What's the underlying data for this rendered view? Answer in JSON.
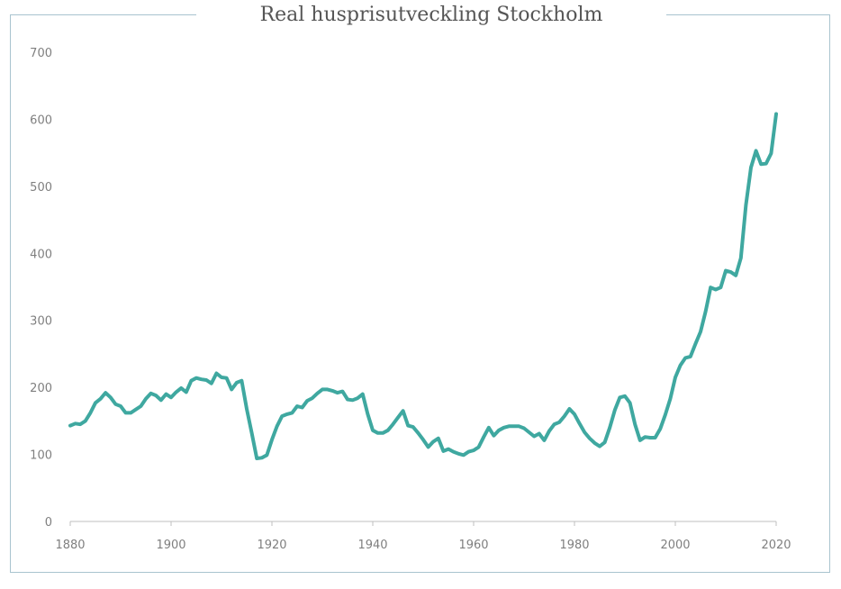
{
  "chart_data": {
    "type": "line",
    "title": "Real husprisutveckling Stockholm",
    "xlabel": "",
    "ylabel": "",
    "xlim": [
      1880,
      2020
    ],
    "ylim": [
      0,
      700
    ],
    "x_ticks": [
      1880,
      1900,
      1920,
      1940,
      1960,
      1980,
      2000,
      2020
    ],
    "y_ticks": [
      0,
      100,
      200,
      300,
      400,
      500,
      600,
      700
    ],
    "grid": false,
    "line_color": "#3fa8a0",
    "series": [
      {
        "x": [
          1880,
          1881,
          1882,
          1883,
          1884,
          1885,
          1886,
          1887,
          1888,
          1889,
          1890,
          1891,
          1892,
          1893,
          1894,
          1895,
          1896,
          1897,
          1898,
          1899,
          1900,
          1901,
          1902,
          1903,
          1904,
          1905,
          1906,
          1907,
          1908,
          1909,
          1910,
          1911,
          1912,
          1913,
          1914,
          1915,
          1916,
          1917,
          1918,
          1919,
          1920,
          1921,
          1922,
          1923,
          1924,
          1925,
          1926,
          1927,
          1928,
          1929,
          1930,
          1931,
          1932,
          1933,
          1934,
          1935,
          1936,
          1937,
          1938,
          1939,
          1940,
          1941,
          1942,
          1943,
          1944,
          1945,
          1946,
          1947,
          1948,
          1949,
          1950,
          1951,
          1952,
          1953,
          1954,
          1955,
          1956,
          1957,
          1958,
          1959,
          1960,
          1961,
          1962,
          1963,
          1964,
          1965,
          1966,
          1967,
          1968,
          1969,
          1970,
          1971,
          1972,
          1973,
          1974,
          1975,
          1976,
          1977,
          1978,
          1979,
          1980,
          1981,
          1982,
          1983,
          1984,
          1985,
          1986,
          1987,
          1988,
          1989,
          1990,
          1991,
          1992,
          1993,
          1994,
          1995,
          1996,
          1997,
          1998,
          1999,
          2000,
          2001,
          2002,
          2003,
          2004,
          2005,
          2006,
          2007,
          2008,
          2009,
          2010,
          2011,
          2012,
          2013,
          2014,
          2015,
          2016,
          2017,
          2018,
          2019,
          2020
        ],
        "values": [
          143,
          146,
          145,
          150,
          162,
          177,
          183,
          192,
          185,
          175,
          172,
          162,
          162,
          167,
          172,
          183,
          191,
          188,
          181,
          190,
          185,
          193,
          199,
          193,
          210,
          214,
          212,
          211,
          206,
          221,
          215,
          214,
          197,
          207,
          210,
          168,
          132,
          94,
          95,
          99,
          122,
          142,
          157,
          160,
          162,
          172,
          170,
          180,
          184,
          191,
          197,
          197,
          195,
          192,
          194,
          182,
          181,
          184,
          190,
          160,
          136,
          132,
          132,
          136,
          145,
          155,
          165,
          143,
          141,
          132,
          122,
          111,
          119,
          124,
          105,
          108,
          104,
          101,
          99,
          104,
          106,
          111,
          126,
          140,
          128,
          136,
          140,
          142,
          142,
          142,
          139,
          133,
          127,
          131,
          121,
          135,
          145,
          148,
          157,
          168,
          160,
          146,
          133,
          124,
          117,
          112,
          118,
          140,
          166,
          185,
          187,
          177,
          145,
          121,
          126,
          125,
          125,
          138,
          159,
          183,
          215,
          233,
          244,
          246,
          265,
          283,
          313,
          349,
          346,
          349,
          374,
          372,
          367,
          393,
          472,
          528,
          553,
          533,
          534,
          549,
          608
        ]
      }
    ]
  }
}
